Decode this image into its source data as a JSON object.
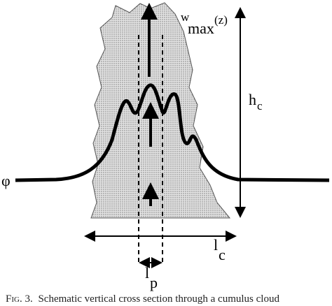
{
  "labels": {
    "wmax": {
      "base": "w",
      "sub": "max",
      "arg": "(z)"
    },
    "hc": {
      "base": "h",
      "sub": "c"
    },
    "phi": "φ",
    "lc": {
      "base": "l",
      "sub": "c"
    },
    "lp": {
      "base": "l",
      "sub": "p"
    }
  },
  "caption": {
    "label": "Fig. 3.",
    "text": "Schematic vertical cross section through a cumulus cloud"
  }
}
